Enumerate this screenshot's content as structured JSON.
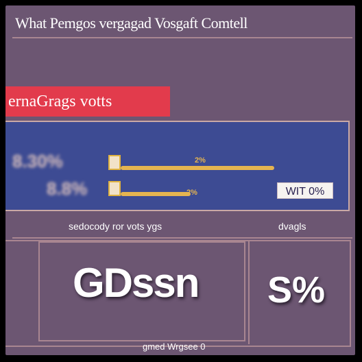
{
  "header": {
    "title": "What Pemgos vergagad Vosgaft Comtell"
  },
  "banner": {
    "label": "ernaGrags votts"
  },
  "results": {
    "rows": [
      {
        "percent_label": "8.30%",
        "bar_label": "2%",
        "fill": 0.88
      },
      {
        "percent_label": "8.8%",
        "bar_label": "2%",
        "fill": 0.4
      }
    ],
    "vote_button": "WIT 0%"
  },
  "summary": {
    "left_label": "sedocody ror vots ygs",
    "right_label": "dvagls",
    "big_value": "GDssn",
    "big_percent": "S%"
  },
  "footer": {
    "text": "gmed Wrgsee 0"
  },
  "colors": {
    "background": "#6c5672",
    "banner": "#e23b4c",
    "panel": "#3d4b93",
    "bar": "#e5b450"
  }
}
